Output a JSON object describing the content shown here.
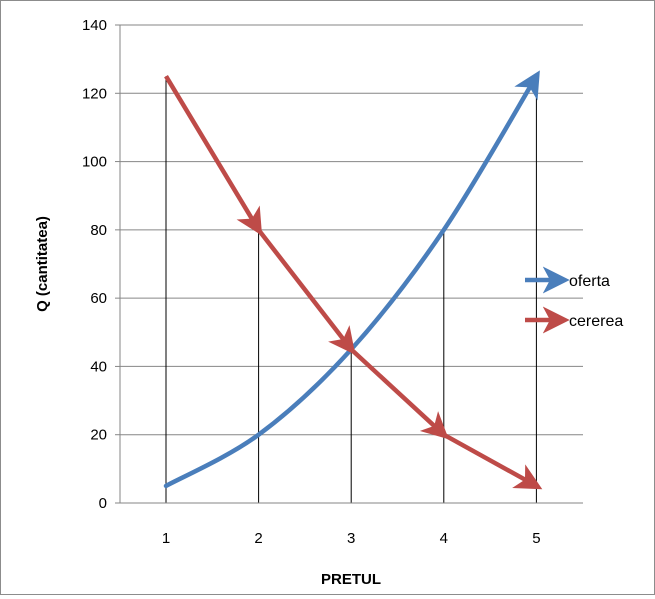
{
  "chart_data": {
    "type": "line",
    "title": "",
    "xlabel": "PRETUL",
    "ylabel": "Q (cantitatea)",
    "x": [
      1,
      2,
      3,
      4,
      5
    ],
    "x_tick_labels": [
      "1",
      "2",
      "3",
      "4",
      "5"
    ],
    "y_tick_labels": [
      "0",
      "20",
      "40",
      "60",
      "80",
      "100",
      "120",
      "140"
    ],
    "ylim": [
      0,
      140
    ],
    "grid": true,
    "legend_position": "right",
    "drop_lines": true,
    "series": [
      {
        "name": "oferta",
        "values": [
          5,
          20,
          45,
          80,
          125
        ],
        "color": "#4a7ebb",
        "smooth": true,
        "arrow_end": true
      },
      {
        "name": "cererea",
        "values": [
          125,
          80,
          45,
          20,
          5
        ],
        "color": "#be4b48",
        "smooth": false,
        "arrow_each_segment": true
      }
    ]
  }
}
